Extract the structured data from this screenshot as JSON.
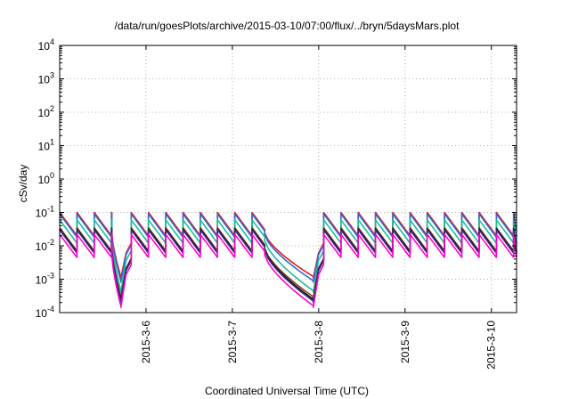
{
  "chart_data": {
    "type": "line",
    "title": "/data/run/goesPlots/archive/2015-03-10/07:00/flux/../bryn/5daysMars.plot",
    "xlabel": "Coordinated Universal Time (UTC)",
    "ylabel": "cSv/day",
    "y_scale": "log",
    "ylim": [
      0.0001,
      10000
    ],
    "y_ticks": [
      {
        "exp": -4,
        "value": 0.0001
      },
      {
        "exp": -3,
        "value": 0.001
      },
      {
        "exp": -2,
        "value": 0.01
      },
      {
        "exp": -1,
        "value": 0.1
      },
      {
        "exp": 0,
        "value": 1
      },
      {
        "exp": 1,
        "value": 10
      },
      {
        "exp": 2,
        "value": 100
      },
      {
        "exp": 3,
        "value": 1000
      },
      {
        "exp": 4,
        "value": 10000
      }
    ],
    "xlim": [
      "2015-03-05 00:00",
      "2015-03-10 07:00"
    ],
    "x_ticks": [
      "2015-3-6",
      "2015-3-7",
      "2015-3-8",
      "2015-3-9",
      "2015-3-10"
    ],
    "grid": true,
    "legend": "none",
    "series": [
      {
        "color": "#e41a1c",
        "base_value": 0.02,
        "peak_value": 0.1,
        "dip_value": 0.0012
      },
      {
        "color": "#2b6fd6",
        "base_value": 0.018,
        "peak_value": 0.09,
        "dip_value": 0.0009
      },
      {
        "color": "#1abc9c",
        "base_value": 0.012,
        "peak_value": 0.06,
        "dip_value": 0.00045
      },
      {
        "color": "#8b4513",
        "base_value": 0.007,
        "peak_value": 0.035,
        "dip_value": 0.0003
      },
      {
        "color": "#111111",
        "base_value": 0.0065,
        "peak_value": 0.032,
        "dip_value": 0.00025
      },
      {
        "color": "#3b2f8f",
        "base_value": 0.006,
        "peak_value": 0.03,
        "dip_value": 0.00022
      },
      {
        "color": "#ff00cc",
        "base_value": 0.0045,
        "peak_value": 0.022,
        "dip_value": 0.00016
      }
    ],
    "dip_periods": [
      {
        "start": "2015-03-05 14:30",
        "end": "2015-03-05 17:00"
      },
      {
        "start": "2015-03-07 09:00",
        "end": "2015-03-07 22:30"
      }
    ]
  }
}
